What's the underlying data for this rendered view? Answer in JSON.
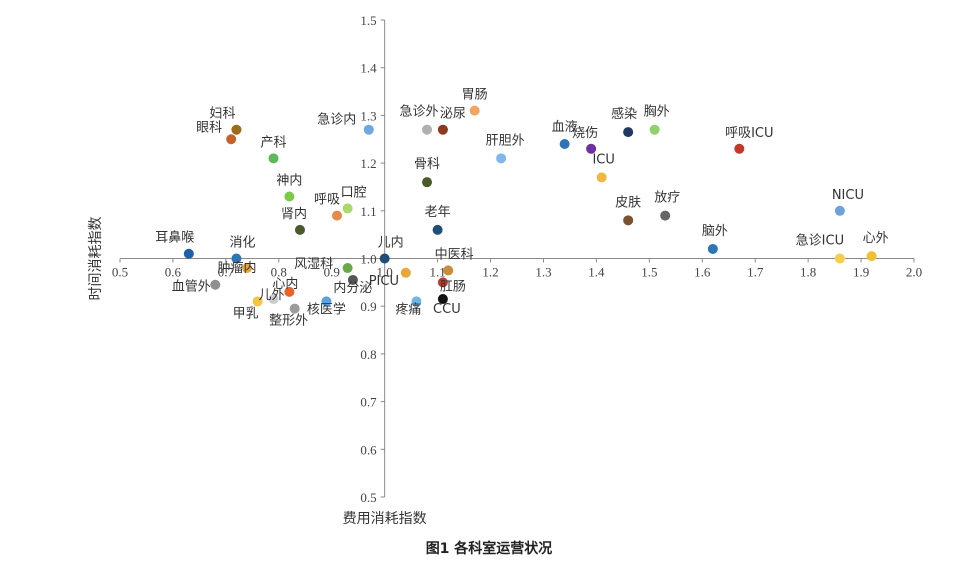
{
  "figure": {
    "caption": "图1  各科室运营状况"
  },
  "chart_data": {
    "type": "scatter",
    "title": "",
    "xlabel": "费用消耗指数",
    "ylabel": "时间消耗指数",
    "xlim": [
      0.5,
      2.0
    ],
    "ylim": [
      0.5,
      1.5
    ],
    "x_ticks": [
      "0.5",
      "0.6",
      "0.7",
      "0.8",
      "0.9",
      "1.0",
      "1.1",
      "1.2",
      "1.3",
      "1.4",
      "1.5",
      "1.6",
      "1.7",
      "1.8",
      "1.9",
      "2.0"
    ],
    "y_ticks": [
      "0.5",
      "0.6",
      "0.7",
      "0.8",
      "0.9",
      "1.0",
      "1.1",
      "1.2",
      "1.3",
      "1.4",
      "1.5"
    ],
    "grid": false,
    "legend": "none",
    "points": [
      {
        "label": "妇科",
        "x": 0.72,
        "y": 1.27,
        "color": "#9e6a1c"
      },
      {
        "label": "眼科",
        "x": 0.71,
        "y": 1.25,
        "color": "#c8602a"
      },
      {
        "label": "产科",
        "x": 0.79,
        "y": 1.21,
        "color": "#5cb85c"
      },
      {
        "label": "神内",
        "x": 0.82,
        "y": 1.13,
        "color": "#7ec850"
      },
      {
        "label": "肾内",
        "x": 0.84,
        "y": 1.06,
        "color": "#4a5a2a"
      },
      {
        "label": "口腔",
        "x": 0.93,
        "y": 1.105,
        "color": "#a9d86e"
      },
      {
        "label": "呼吸",
        "x": 0.91,
        "y": 1.09,
        "color": "#e58a4a"
      },
      {
        "label": "急诊内",
        "x": 0.97,
        "y": 1.27,
        "color": "#6fa8dc"
      },
      {
        "label": "急诊外",
        "x": 1.08,
        "y": 1.27,
        "color": "#b0b0b0"
      },
      {
        "label": "泌尿",
        "x": 1.11,
        "y": 1.27,
        "color": "#8b3a1e"
      },
      {
        "label": "胃肠",
        "x": 1.17,
        "y": 1.31,
        "color": "#f4a460"
      },
      {
        "label": "骨科",
        "x": 1.08,
        "y": 1.16,
        "color": "#4a5a2a"
      },
      {
        "label": "肝胆外",
        "x": 1.22,
        "y": 1.21,
        "color": "#7fb8e8"
      },
      {
        "label": "老年",
        "x": 1.1,
        "y": 1.06,
        "color": "#1f4e79"
      },
      {
        "label": "血液",
        "x": 1.34,
        "y": 1.24,
        "color": "#2e75b6"
      },
      {
        "label": "烧伤",
        "x": 1.39,
        "y": 1.23,
        "color": "#7030a0"
      },
      {
        "label": "感染",
        "x": 1.46,
        "y": 1.265,
        "color": "#1f3864"
      },
      {
        "label": "胸外",
        "x": 1.51,
        "y": 1.27,
        "color": "#8fd16a"
      },
      {
        "label": "ICU",
        "x": 1.41,
        "y": 1.17,
        "color": "#f0b840"
      },
      {
        "label": "呼吸ICU",
        "x": 1.67,
        "y": 1.23,
        "color": "#c0392b"
      },
      {
        "label": "皮肤",
        "x": 1.46,
        "y": 1.08,
        "color": "#7a5230"
      },
      {
        "label": "放疗",
        "x": 1.53,
        "y": 1.09,
        "color": "#666666"
      },
      {
        "label": "NICU",
        "x": 1.86,
        "y": 1.1,
        "color": "#6fa0d8"
      },
      {
        "label": "脑外",
        "x": 1.62,
        "y": 1.02,
        "color": "#2e75b6"
      },
      {
        "label": "急诊ICU",
        "x": 1.86,
        "y": 1.0,
        "color": "#f5cf4a"
      },
      {
        "label": "心外",
        "x": 1.92,
        "y": 1.005,
        "color": "#f0c030"
      },
      {
        "label": "耳鼻喉",
        "x": 0.63,
        "y": 1.01,
        "color": "#1f5fa8"
      },
      {
        "label": "消化",
        "x": 0.72,
        "y": 1.0,
        "color": "#2e75b6"
      },
      {
        "label": "肿瘤内",
        "x": 0.74,
        "y": 0.98,
        "color": "#e8a838"
      },
      {
        "label": "血管外",
        "x": 0.68,
        "y": 0.945,
        "color": "#909090"
      },
      {
        "label": "甲乳",
        "x": 0.76,
        "y": 0.91,
        "color": "#f5c542"
      },
      {
        "label": "儿外",
        "x": 0.79,
        "y": 0.915,
        "color": "#cccccc"
      },
      {
        "label": "心内",
        "x": 0.82,
        "y": 0.93,
        "color": "#e8622a"
      },
      {
        "label": "整形外",
        "x": 0.83,
        "y": 0.895,
        "color": "#9c9c9c"
      },
      {
        "label": "核医学",
        "x": 0.89,
        "y": 0.91,
        "color": "#5ba3e0"
      },
      {
        "label": "风湿科",
        "x": 0.93,
        "y": 0.98,
        "color": "#6aa84f"
      },
      {
        "label": "内分泌",
        "x": 0.94,
        "y": 0.955,
        "color": "#555555"
      },
      {
        "label": "儿内",
        "x": 1.0,
        "y": 1.0,
        "color": "#1f4e79"
      },
      {
        "label": "PICU",
        "x": 1.04,
        "y": 0.97,
        "color": "#e8a838"
      },
      {
        "label": "中医科",
        "x": 1.12,
        "y": 0.975,
        "color": "#c98c3a"
      },
      {
        "label": "肛肠",
        "x": 1.11,
        "y": 0.95,
        "color": "#c0392b"
      },
      {
        "label": "疼痛",
        "x": 1.06,
        "y": 0.91,
        "color": "#6fb6e8"
      },
      {
        "label": "CCU",
        "x": 1.11,
        "y": 0.915,
        "color": "#111111"
      }
    ]
  }
}
